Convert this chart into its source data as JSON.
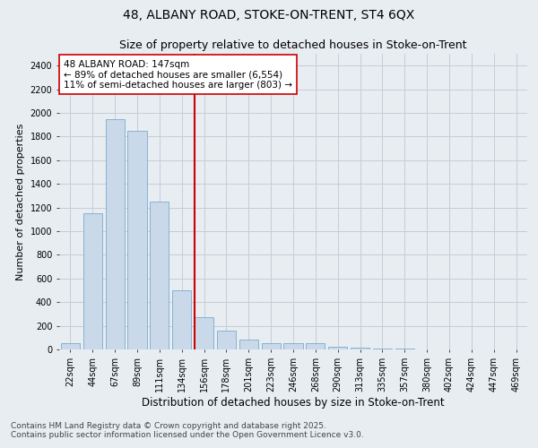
{
  "title1": "48, ALBANY ROAD, STOKE-ON-TRENT, ST4 6QX",
  "title2": "Size of property relative to detached houses in Stoke-on-Trent",
  "xlabel": "Distribution of detached houses by size in Stoke-on-Trent",
  "ylabel": "Number of detached properties",
  "categories": [
    "22sqm",
    "44sqm",
    "67sqm",
    "89sqm",
    "111sqm",
    "134sqm",
    "156sqm",
    "178sqm",
    "201sqm",
    "223sqm",
    "246sqm",
    "268sqm",
    "290sqm",
    "313sqm",
    "335sqm",
    "357sqm",
    "380sqm",
    "402sqm",
    "424sqm",
    "447sqm",
    "469sqm"
  ],
  "values": [
    50,
    1150,
    1950,
    1850,
    1250,
    500,
    270,
    160,
    80,
    50,
    55,
    55,
    20,
    15,
    10,
    5,
    3,
    2,
    1,
    1,
    1
  ],
  "bar_color": "#c9d9ea",
  "bar_edge_color": "#7aabcc",
  "grid_color": "#c5cdd6",
  "bg_color": "#e8edf2",
  "annotation_line1": "48 ALBANY ROAD: 147sqm",
  "annotation_line2": "← 89% of detached houses are smaller (6,554)",
  "annotation_line3": "11% of semi-detached houses are larger (803) →",
  "vline_x": 5.57,
  "vline_color": "#cc0000",
  "annotation_box_color": "#ffffff",
  "annotation_box_edge": "#cc0000",
  "ylim": [
    0,
    2500
  ],
  "yticks": [
    0,
    200,
    400,
    600,
    800,
    1000,
    1200,
    1400,
    1600,
    1800,
    2000,
    2200,
    2400
  ],
  "footer1": "Contains HM Land Registry data © Crown copyright and database right 2025.",
  "footer2": "Contains public sector information licensed under the Open Government Licence v3.0.",
  "title1_fontsize": 10,
  "title2_fontsize": 9,
  "tick_fontsize": 7,
  "xlabel_fontsize": 8.5,
  "ylabel_fontsize": 8,
  "footer_fontsize": 6.5,
  "annotation_fontsize": 7.5
}
